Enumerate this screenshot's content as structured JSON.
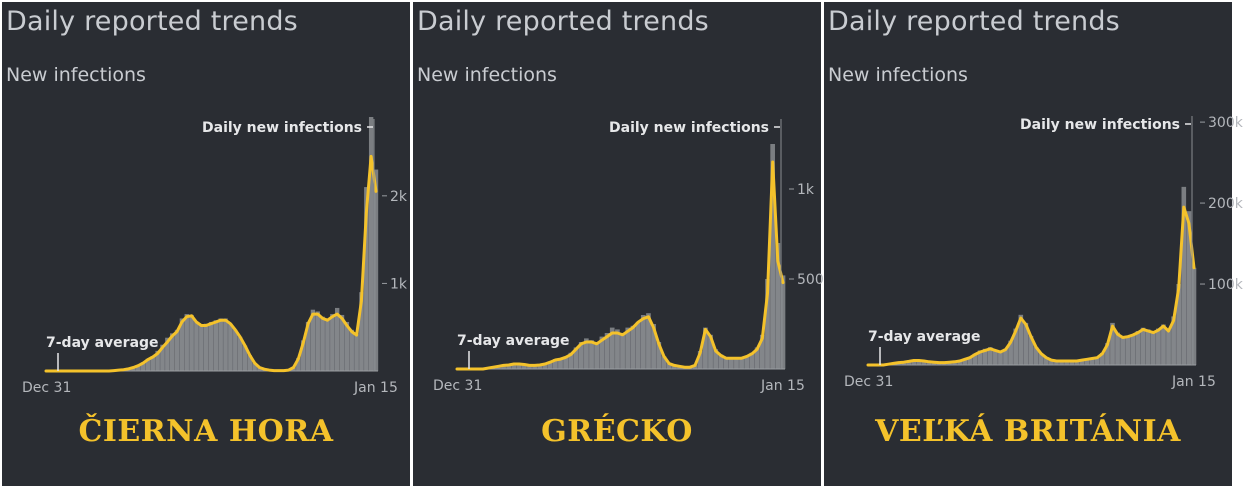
{
  "panels": [
    {
      "title": "Daily reported trends",
      "subtitle": "New infections",
      "country": "ČIERNA HORA",
      "chart_data": {
        "type": "area",
        "title": "Daily reported trends",
        "subtitle": "New infections",
        "x_start_label": "Dec 31",
        "x_end_label": "Jan 15",
        "bar_label": "Daily new infections",
        "avg_label": "7-day average",
        "ylim": [
          0,
          2900
        ],
        "yticks": [
          {
            "value": 1000,
            "label": "1k"
          },
          {
            "value": 2000,
            "label": "2k"
          }
        ],
        "grid": false,
        "colors": {
          "average": "#f4c22b",
          "bars": "#8a8d91",
          "background": "#2a2d33"
        },
        "daily_new_infections": [
          0,
          0,
          0,
          0,
          0,
          0,
          0,
          0,
          0,
          0,
          0,
          0,
          0,
          0,
          10,
          15,
          20,
          25,
          40,
          60,
          100,
          140,
          170,
          230,
          300,
          380,
          430,
          470,
          600,
          650,
          640,
          560,
          520,
          540,
          560,
          580,
          600,
          600,
          540,
          470,
          390,
          290,
          180,
          90,
          40,
          20,
          10,
          5,
          5,
          5,
          10,
          40,
          150,
          350,
          560,
          700,
          680,
          620,
          600,
          650,
          720,
          640,
          560,
          470,
          420,
          900,
          2100,
          2900,
          2300
        ],
        "seven_day_average": [
          0,
          0,
          0,
          0,
          0,
          0,
          0,
          0,
          0,
          0,
          0,
          0,
          0,
          0,
          5,
          10,
          15,
          25,
          40,
          60,
          90,
          130,
          160,
          200,
          270,
          330,
          400,
          450,
          560,
          620,
          630,
          560,
          520,
          520,
          540,
          560,
          580,
          580,
          540,
          470,
          390,
          290,
          180,
          90,
          40,
          20,
          10,
          5,
          5,
          5,
          10,
          40,
          140,
          320,
          540,
          650,
          650,
          600,
          580,
          620,
          650,
          600,
          520,
          450,
          410,
          800,
          1800,
          2450,
          2050
        ]
      }
    },
    {
      "title": "Daily reported trends",
      "subtitle": "New infections",
      "country": "GRÉCKO",
      "chart_data": {
        "type": "area",
        "title": "Daily reported trends",
        "subtitle": "New infections",
        "x_start_label": "Dec 31",
        "x_end_label": "Jan 15",
        "bar_label": "Daily new infections",
        "avg_label": "7-day average",
        "ylim": [
          0,
          1400
        ],
        "yticks": [
          {
            "value": 500,
            "label": "500"
          },
          {
            "value": 1000,
            "label": "1k"
          }
        ],
        "grid": false,
        "colors": {
          "average": "#f4c22b",
          "bars": "#8a8d91",
          "background": "#2a2d33"
        },
        "daily_new_infections": [
          0,
          0,
          0,
          0,
          0,
          0,
          5,
          10,
          15,
          20,
          25,
          30,
          30,
          25,
          20,
          20,
          25,
          30,
          40,
          55,
          60,
          70,
          90,
          120,
          150,
          170,
          160,
          150,
          180,
          200,
          230,
          220,
          200,
          230,
          240,
          260,
          300,
          310,
          250,
          150,
          70,
          30,
          20,
          15,
          10,
          10,
          20,
          100,
          230,
          190,
          110,
          80,
          60,
          60,
          60,
          60,
          70,
          90,
          120,
          190,
          500,
          1250,
          700,
          520
        ],
        "seven_day_average": [
          0,
          0,
          0,
          0,
          0,
          0,
          5,
          10,
          15,
          20,
          22,
          28,
          28,
          25,
          20,
          20,
          22,
          28,
          38,
          50,
          55,
          65,
          80,
          110,
          140,
          150,
          150,
          140,
          160,
          180,
          200,
          200,
          190,
          210,
          230,
          260,
          280,
          290,
          230,
          140,
          70,
          30,
          20,
          15,
          10,
          10,
          20,
          90,
          220,
          180,
          100,
          75,
          60,
          60,
          60,
          60,
          70,
          85,
          110,
          170,
          420,
          1150,
          600,
          480
        ]
      }
    },
    {
      "title": "Daily reported trends",
      "subtitle": "New infections",
      "country": "VEĽKÁ BRITÁNIA",
      "chart_data": {
        "type": "area",
        "title": "Daily reported trends",
        "subtitle": "New infections",
        "x_start_label": "Dec 31",
        "x_end_label": "Jan 15",
        "bar_label": "Daily new infections",
        "avg_label": "7-day average",
        "ylim": [
          0,
          310000
        ],
        "yticks": [
          {
            "value": 100000,
            "label": "100k"
          },
          {
            "value": 200000,
            "label": "200k"
          },
          {
            "value": 300000,
            "label": "300k"
          }
        ],
        "grid": false,
        "colors": {
          "average": "#f4c22b",
          "bars": "#8a8d91",
          "background": "#2a2d33"
        },
        "daily_new_infections": [
          0,
          0,
          0,
          0,
          1000,
          2000,
          3000,
          4000,
          5000,
          6000,
          6000,
          5000,
          4000,
          3500,
          3000,
          3000,
          3500,
          4000,
          5000,
          7000,
          10000,
          14000,
          18000,
          20000,
          22000,
          18000,
          16000,
          20000,
          30000,
          45000,
          62000,
          52000,
          36000,
          22000,
          14000,
          9000,
          6000,
          5000,
          5000,
          5000,
          5000,
          5000,
          6000,
          7000,
          8000,
          9000,
          15000,
          27000,
          52000,
          40000,
          35000,
          36000,
          38000,
          42000,
          46000,
          44000,
          40000,
          45000,
          50000,
          43000,
          60000,
          100000,
          220000,
          190000,
          120000
        ],
        "seven_day_average": [
          0,
          0,
          0,
          0,
          1000,
          2000,
          3000,
          3500,
          4500,
          5500,
          5500,
          5000,
          4000,
          3500,
          3000,
          3000,
          3500,
          4000,
          5000,
          7000,
          9000,
          13000,
          16000,
          18000,
          20000,
          18000,
          16000,
          19000,
          28000,
          42000,
          58000,
          50000,
          35000,
          22000,
          14000,
          9000,
          6000,
          5000,
          5000,
          5000,
          5000,
          5000,
          6000,
          7000,
          8000,
          9000,
          14000,
          25000,
          48000,
          38000,
          34000,
          35000,
          37000,
          40000,
          44000,
          42000,
          40000,
          43000,
          48000,
          42000,
          55000,
          95000,
          195000,
          175000,
          120000
        ]
      }
    }
  ]
}
